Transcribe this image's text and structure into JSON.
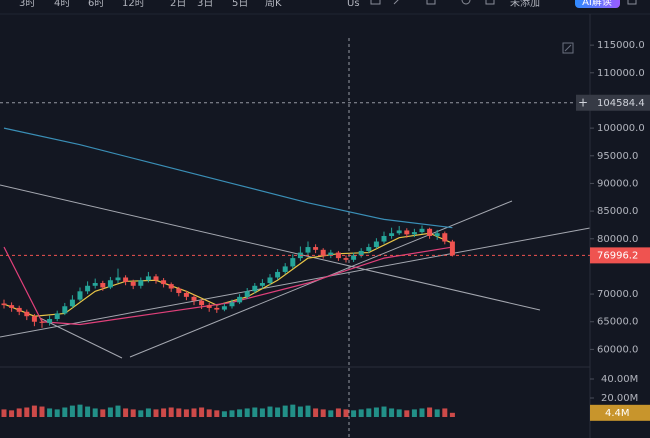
{
  "toolbar": {
    "intervals": [
      "3时",
      "4时",
      "6时",
      "12时",
      "2日",
      "3日",
      "5日",
      "周K"
    ],
    "symbol": "Us",
    "watch": "未添加",
    "ai": "AI解读"
  },
  "chart_data": {
    "type": "candlestick",
    "open": [
      68300,
      68000,
      67500,
      66800,
      66000,
      65000,
      64800,
      65500,
      66500,
      67800,
      69000,
      70500,
      71500,
      72000,
      71200,
      72500,
      73000,
      72200,
      71500,
      72500,
      73200,
      72500,
      71800,
      71000,
      70200,
      69500,
      68800,
      68000,
      67500,
      67200,
      67800,
      68500,
      69500,
      70500,
      71500,
      72000,
      73000,
      74000,
      75000,
      76500,
      77500,
      78500,
      78000,
      77000,
      77500,
      76500,
      76200,
      77000,
      77800,
      78500,
      79500,
      80500,
      81000,
      81500,
      80800,
      81200,
      81800,
      80500,
      81000,
      79500
    ],
    "high": [
      69000,
      68500,
      67900,
      67200,
      66400,
      65600,
      66100,
      67000,
      68400,
      69800,
      71200,
      72300,
      72800,
      72400,
      73100,
      74600,
      73400,
      72600,
      73000,
      74000,
      73600,
      72900,
      72100,
      71300,
      70600,
      69900,
      69100,
      68400,
      67900,
      68300,
      69000,
      70000,
      71100,
      72000,
      72700,
      73600,
      74500,
      75600,
      77200,
      78600,
      79500,
      79000,
      78300,
      78000,
      77800,
      77000,
      77500,
      78300,
      79100,
      80100,
      81300,
      82000,
      82300,
      81900,
      81800,
      82400,
      82000,
      81600,
      81300,
      79800
    ],
    "low": [
      67400,
      66800,
      66200,
      65300,
      64200,
      63900,
      64300,
      65100,
      66200,
      67500,
      68700,
      70000,
      71000,
      70600,
      70900,
      72000,
      71600,
      70900,
      71000,
      72100,
      71900,
      71200,
      70400,
      69600,
      68900,
      68000,
      67300,
      66800,
      66600,
      66900,
      67400,
      68200,
      69100,
      70100,
      71000,
      71600,
      72600,
      73600,
      74600,
      76000,
      77000,
      77400,
      76400,
      76500,
      76000,
      75700,
      75800,
      76600,
      77400,
      78200,
      79100,
      80000,
      80700,
      80200,
      80300,
      80900,
      80000,
      79800,
      79000,
      76800
    ],
    "close": [
      68000,
      67500,
      66800,
      66000,
      65000,
      64800,
      65500,
      66500,
      67800,
      69000,
      70500,
      71500,
      72000,
      71200,
      72500,
      73000,
      72200,
      71500,
      72500,
      73200,
      72500,
      71800,
      71000,
      70200,
      69500,
      68800,
      68000,
      67500,
      67200,
      67800,
      68500,
      69500,
      70500,
      71500,
      72000,
      73000,
      74000,
      75000,
      76500,
      77500,
      78500,
      78000,
      77000,
      77500,
      76500,
      76200,
      77000,
      77800,
      78500,
      79500,
      80500,
      81000,
      81500,
      80800,
      81200,
      81800,
      80500,
      81000,
      79500,
      76996.2
    ],
    "volume": [
      8,
      7,
      9,
      10,
      12,
      11,
      9,
      8,
      10,
      12,
      13,
      11,
      9,
      8,
      10,
      12,
      9,
      8,
      7,
      9,
      8,
      9,
      10,
      9,
      8,
      9,
      10,
      8,
      7,
      6,
      7,
      8,
      9,
      10,
      9,
      11,
      10,
      12,
      13,
      11,
      12,
      9,
      8,
      7,
      9,
      8,
      7,
      8,
      9,
      10,
      11,
      9,
      8,
      7,
      8,
      9,
      10,
      8,
      9,
      4.4
    ],
    "up_color": "#26a69a",
    "down_color": "#ef5350",
    "ma": [
      {
        "color": "#e8c547",
        "x": [
          0,
          4,
          8,
          12,
          16,
          20,
          24,
          28,
          32,
          36,
          40,
          44,
          48,
          52,
          56,
          59
        ],
        "values": [
          68200,
          66000,
          66500,
          70500,
          72300,
          72500,
          70500,
          68000,
          69500,
          72500,
          76500,
          77300,
          77500,
          80200,
          81000,
          79200
        ]
      },
      {
        "color": "#e0407a",
        "x": [
          0,
          5,
          10,
          20,
          30,
          40,
          50,
          59
        ],
        "values": [
          78500,
          65000,
          64500,
          66500,
          68500,
          72000,
          76500,
          78500
        ]
      },
      {
        "color": "#3a8fb7",
        "x": [
          0,
          10,
          20,
          30,
          40,
          50,
          59
        ],
        "values": [
          100000,
          97000,
          93500,
          90000,
          86500,
          83500,
          82000
        ]
      }
    ],
    "ylim": [
      57000,
      119000
    ],
    "yticks": [
      {
        "value": 115000,
        "label": "115000.0"
      },
      {
        "value": 110000,
        "label": "110000.0"
      },
      {
        "value": 100000,
        "label": "100000.0"
      },
      {
        "value": 95000,
        "label": "95000.0"
      },
      {
        "value": 90000,
        "label": "90000.0"
      },
      {
        "value": 85000,
        "label": "85000.0"
      },
      {
        "value": 80000,
        "label": "80000.0"
      },
      {
        "value": 70000,
        "label": "70000.0"
      },
      {
        "value": 65000,
        "label": "65000.0"
      },
      {
        "value": 60000,
        "label": "60000.0"
      }
    ],
    "crosshair_price": 104584.4,
    "last_price": 76996.2,
    "vlim": [
      0,
      40
    ],
    "vticks": [
      {
        "value": 40,
        "label": "40.00M"
      },
      {
        "value": 20,
        "label": "20.00M"
      }
    ],
    "volume_label": {
      "value": 4.4,
      "label": "4.4M"
    }
  }
}
